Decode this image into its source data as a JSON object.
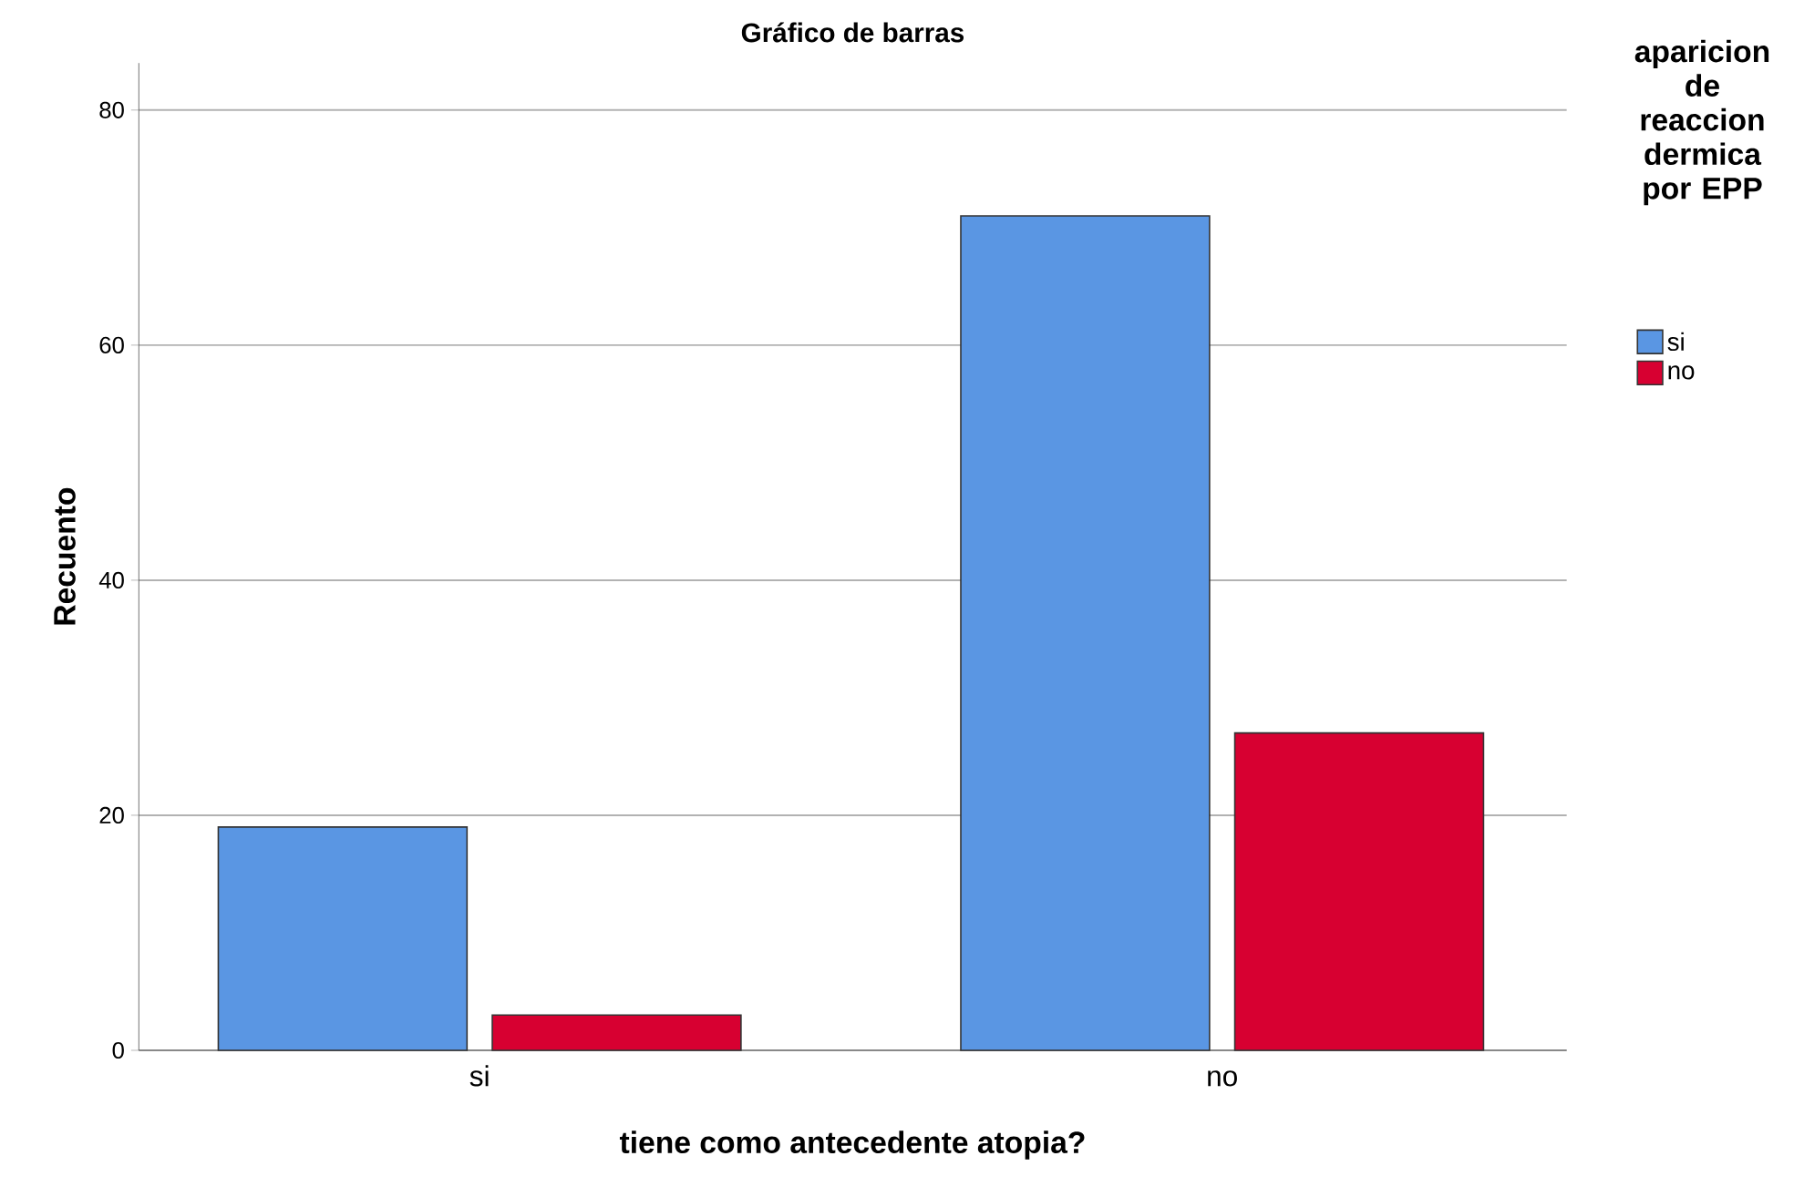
{
  "chart_data": {
    "type": "bar",
    "title": "Gráfico de barras",
    "xlabel": "tiene como antecedente atopia?",
    "ylabel": "Recuento",
    "legend_title": "aparicion de reaccion dermica por EPP",
    "categories": [
      "si",
      "no"
    ],
    "series": [
      {
        "name": "si",
        "color": "#5a96e3",
        "values": [
          19,
          71
        ]
      },
      {
        "name": "no",
        "color": "#d70031",
        "values": [
          3,
          27
        ]
      }
    ],
    "ylim": [
      0,
      84
    ],
    "yticks": [
      0,
      20,
      40,
      60,
      80
    ],
    "grid": "y",
    "legend": "right"
  }
}
